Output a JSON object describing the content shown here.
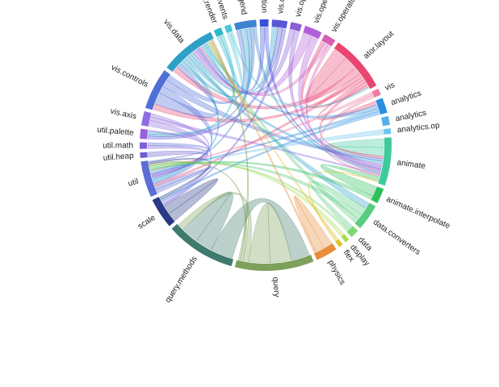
{
  "chart_data": {
    "type": "chord",
    "title": "",
    "groups": [
      {
        "name": "query",
        "value": 7.2,
        "color": "#7da05d"
      },
      {
        "name": "query.methods",
        "value": 6.4,
        "color": "#3f7a6e"
      },
      {
        "name": "scale",
        "value": 2.8,
        "color": "#2b3a86"
      },
      {
        "name": "util",
        "value": 3.3,
        "color": "#5c6fd6"
      },
      {
        "name": "util.heap",
        "value": 0.5,
        "color": "#6b5fd1"
      },
      {
        "name": "util.math",
        "value": 0.6,
        "color": "#7e5fd8"
      },
      {
        "name": "util.palette",
        "value": 0.9,
        "color": "#9a5fdc"
      },
      {
        "name": "vis.axis",
        "value": 1.3,
        "color": "#8f6de0"
      },
      {
        "name": "vis.controls",
        "value": 3.8,
        "color": "#4f6ed8"
      },
      {
        "name": "vis.data",
        "value": 5.1,
        "color": "#2ea0c8"
      },
      {
        "name": "vis.data.render",
        "value": 0.7,
        "color": "#2fb8c8"
      },
      {
        "name": "vis.events",
        "value": 0.6,
        "color": "#4ac7d6"
      },
      {
        "name": "vis.legend",
        "value": 2.0,
        "color": "#3d83d1"
      },
      {
        "name": "vis.operator.distortion",
        "value": 0.8,
        "color": "#3a4fd8"
      },
      {
        "name": "vis.operator.encoder",
        "value": 1.4,
        "color": "#5a56d4"
      },
      {
        "name": "vis.operator.filter",
        "value": 1.0,
        "color": "#8a5fd6"
      },
      {
        "name": "vis.operator",
        "value": 1.6,
        "color": "#b15fd8"
      },
      {
        "name": "vis.operator.label",
        "value": 1.1,
        "color": "#d65fb0"
      },
      {
        "name": "ator.layout",
        "value": 5.2,
        "color": "#e8456f"
      },
      {
        "name": "vis",
        "value": 0.6,
        "color": "#f07aa0"
      },
      {
        "name": "analytics",
        "value": 1.4,
        "color": "#2b8fe0"
      },
      {
        "name": "analytics",
        "value": 0.8,
        "color": "#56b0e8"
      },
      {
        "name": "analytics.op",
        "value": 0.5,
        "color": "#6fc6ee"
      },
      {
        "name": "animate",
        "value": 4.4,
        "color": "#3fc99e"
      },
      {
        "name": "animate.interpolate",
        "value": 1.4,
        "color": "#2fbf5c"
      },
      {
        "name": "data.converters",
        "value": 2.4,
        "color": "#58cc82"
      },
      {
        "name": "data",
        "value": 0.8,
        "color": "#7fd86e"
      },
      {
        "name": "display",
        "value": 0.4,
        "color": "#a8dc50"
      },
      {
        "name": "flex",
        "value": 0.4,
        "color": "#e3c330"
      },
      {
        "name": "physics",
        "value": 2.0,
        "color": "#e88d3a"
      }
    ],
    "links": [
      {
        "source": "query.methods",
        "target": "query",
        "value": 2.6
      },
      {
        "source": "query.methods",
        "target": "query.methods",
        "value": 2.0
      },
      {
        "source": "scale",
        "target": "scale",
        "value": 1.4
      },
      {
        "source": "util",
        "target": "util",
        "value": 0.9
      },
      {
        "source": "physics",
        "target": "physics",
        "value": 1.4
      },
      {
        "source": "query",
        "target": "query",
        "value": 3.0
      },
      {
        "source": "ator.layout",
        "target": "ator.layout",
        "value": 1.8
      },
      {
        "source": "animate",
        "target": "animate",
        "value": 1.6
      },
      {
        "source": "ator.layout",
        "target": "vis.data",
        "value": 0.9
      },
      {
        "source": "ator.layout",
        "target": "util",
        "value": 0.5
      },
      {
        "source": "ator.layout",
        "target": "vis.controls",
        "value": 0.4
      },
      {
        "source": "ator.layout",
        "target": "analytics",
        "value": 0.4
      },
      {
        "source": "ator.layout",
        "target": "animate",
        "value": 0.4
      },
      {
        "source": "ator.layout",
        "target": "vis.operator.label",
        "value": 0.3
      },
      {
        "source": "vis.controls",
        "target": "vis.data",
        "value": 0.8
      },
      {
        "source": "vis.controls",
        "target": "util",
        "value": 0.5
      },
      {
        "source": "vis.controls",
        "target": "animate",
        "value": 0.5
      },
      {
        "source": "vis.controls",
        "target": "vis.legend",
        "value": 0.4
      },
      {
        "source": "vis.data",
        "target": "vis.legend",
        "value": 0.6
      },
      {
        "source": "vis.data",
        "target": "util",
        "value": 0.6
      },
      {
        "source": "vis.data",
        "target": "animate",
        "value": 0.6
      },
      {
        "source": "vis.data",
        "target": "data.converters",
        "value": 0.5
      },
      {
        "source": "vis.data",
        "target": "vis.operator.encoder",
        "value": 0.5
      },
      {
        "source": "vis.operator",
        "target": "vis.data",
        "value": 0.5
      },
      {
        "source": "vis.operator",
        "target": "animate",
        "value": 0.4
      },
      {
        "source": "vis.operator.filter",
        "target": "vis.data",
        "value": 0.4
      },
      {
        "source": "vis.operator.filter",
        "target": "animate",
        "value": 0.4
      },
      {
        "source": "vis.operator.encoder",
        "target": "util.palette",
        "value": 0.4
      },
      {
        "source": "vis.operator.encoder",
        "target": "scale",
        "value": 0.3
      },
      {
        "source": "vis.operator.distortion",
        "target": "vis.data",
        "value": 0.4
      },
      {
        "source": "vis.operator.distortion",
        "target": "animate",
        "value": 0.3
      },
      {
        "source": "vis.operator.label",
        "target": "vis.data",
        "value": 0.4
      },
      {
        "source": "vis.operator.label",
        "target": "animate",
        "value": 0.3
      },
      {
        "source": "vis.legend",
        "target": "util",
        "value": 0.4
      },
      {
        "source": "vis.legend",
        "target": "util.palette",
        "value": 0.3
      },
      {
        "source": "vis.legend",
        "target": "animate",
        "value": 0.3
      },
      {
        "source": "vis.events",
        "target": "vis.data",
        "value": 0.3
      },
      {
        "source": "vis.events",
        "target": "ator.layout",
        "value": 0.2
      },
      {
        "source": "vis.data.render",
        "target": "vis.data",
        "value": 0.3
      },
      {
        "source": "vis.data.render",
        "target": "util.palette",
        "value": 0.3
      },
      {
        "source": "vis.axis",
        "target": "scale",
        "value": 0.5
      },
      {
        "source": "vis.axis",
        "target": "animate",
        "value": 0.3
      },
      {
        "source": "vis.axis",
        "target": "util",
        "value": 0.3
      },
      {
        "source": "util.heap",
        "target": "util",
        "value": 0.3
      },
      {
        "source": "util.math",
        "target": "util",
        "value": 0.3
      },
      {
        "source": "util.palette",
        "target": "util",
        "value": 0.2
      },
      {
        "source": "analytics",
        "target": "vis.data",
        "value": 0.4
      },
      {
        "source": "analytics",
        "target": "util",
        "value": 0.3
      },
      {
        "source": "analytics",
        "target": "scale",
        "value": 0.3
      },
      {
        "source": "analytics.op",
        "target": "util",
        "value": 0.3
      },
      {
        "source": "vis",
        "target": "util",
        "value": 0.3
      },
      {
        "source": "vis",
        "target": "animate",
        "value": 0.3
      },
      {
        "source": "animate.interpolate",
        "target": "animate",
        "value": 0.8
      },
      {
        "source": "animate.interpolate",
        "target": "util",
        "value": 0.3
      },
      {
        "source": "data.converters",
        "target": "data",
        "value": 0.6
      },
      {
        "source": "data.converters",
        "target": "util",
        "value": 0.4
      },
      {
        "source": "data.converters",
        "target": "vis.data",
        "value": 0.4
      },
      {
        "source": "data",
        "target": "util",
        "value": 0.3
      },
      {
        "source": "display",
        "target": "util",
        "value": 0.2
      },
      {
        "source": "flex",
        "target": "vis.data",
        "value": 0.2
      },
      {
        "source": "flex",
        "target": "animate",
        "value": 0.2
      },
      {
        "source": "physics",
        "target": "vis.data",
        "value": 0.3
      },
      {
        "source": "query",
        "target": "query.methods",
        "value": 0.8
      },
      {
        "source": "query",
        "target": "util",
        "value": 0.4
      },
      {
        "source": "query",
        "target": "vis.data",
        "value": 0.3
      },
      {
        "source": "scale",
        "target": "util",
        "value": 0.4
      },
      {
        "source": "util",
        "target": "util.math",
        "value": 0.3
      }
    ]
  }
}
